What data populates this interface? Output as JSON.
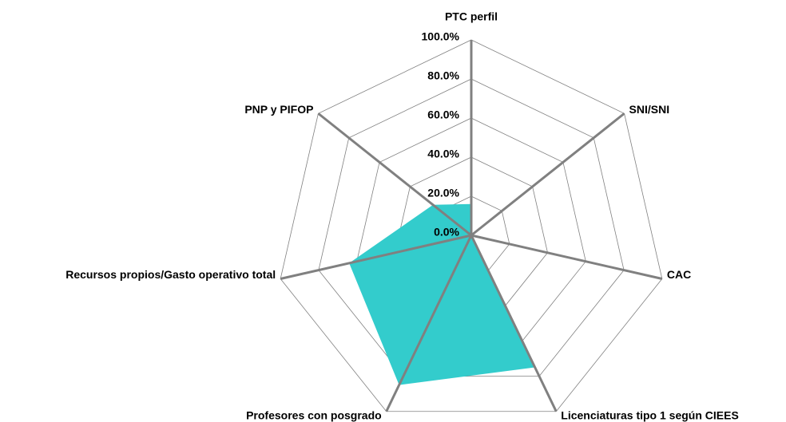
{
  "chart_data": {
    "type": "radar",
    "categories": [
      "PTC perfil",
      "SNI/SNI",
      "CAC",
      "Licenciaturas tipo 1 según CIEES",
      "Profesores con posgrado",
      "Recursos propios/Gasto operativo total",
      "PNP y PIFOP"
    ],
    "values": [
      16,
      0,
      0,
      75,
      85,
      64,
      25
    ],
    "color": "#33cccc",
    "ylim": [
      0,
      100
    ],
    "yticks": [
      {
        "value": 0,
        "label": "0.0%"
      },
      {
        "value": 20,
        "label": "20.0%"
      },
      {
        "value": 40,
        "label": "40.0%"
      },
      {
        "value": 60,
        "label": "60.0%"
      },
      {
        "value": 80,
        "label": "80.0%"
      },
      {
        "value": 100,
        "label": "100.0%"
      }
    ],
    "grid": true
  }
}
